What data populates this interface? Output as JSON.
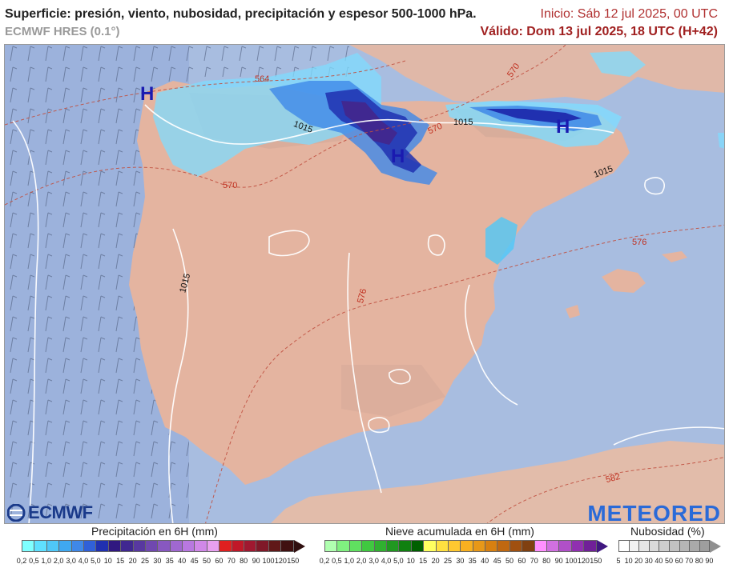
{
  "header": {
    "title": "Superficie: presión, viento, nubosidad, precipitación y espesor 500-1000 hPa.",
    "model": "ECMWF HRES (0.1°)",
    "init": "Inicio: Sáb 12 jul 2025, 00 UTC",
    "valid": "Válido: Dom 13 jul 2025, 18 UTC (H+42)"
  },
  "map": {
    "pressure_centers": [
      "H",
      "H",
      "H"
    ],
    "isobar_labels": [
      "1015",
      "1015",
      "1015",
      "1015"
    ],
    "thickness_labels": [
      "564",
      "570",
      "570",
      "570",
      "576",
      "576",
      "582"
    ],
    "logos": {
      "left": "ECMWF",
      "right": "METEORED"
    }
  },
  "legends": {
    "precip": {
      "title": "Precipitación en 6H (mm)",
      "labels": [
        "0,2",
        "0,5",
        "1,0",
        "2,0",
        "3,0",
        "4,0",
        "5,0",
        "10",
        "15",
        "20",
        "25",
        "30",
        "35",
        "40",
        "45",
        "50",
        "60",
        "70",
        "80",
        "90",
        "100",
        "120",
        "150"
      ],
      "colors": [
        "#7fffff",
        "#5fe0ff",
        "#4fc8f8",
        "#3fa8f0",
        "#3f88e8",
        "#3060d8",
        "#2030b0",
        "#301880",
        "#402890",
        "#5838a0",
        "#7048b0",
        "#8858c0",
        "#a068d0",
        "#b878e0",
        "#d088e8",
        "#e8a0f0",
        "#e02020",
        "#c01828",
        "#a01830",
        "#801828",
        "#601818",
        "#401010"
      ],
      "arrow_color": "#301010"
    },
    "snow": {
      "title": "Nieve acumulada en 6H (mm)",
      "labels": [
        "0,2",
        "0,5",
        "1,0",
        "2,0",
        "3,0",
        "4,0",
        "5,0",
        "10",
        "15",
        "20",
        "25",
        "30",
        "35",
        "40",
        "45",
        "50",
        "60",
        "70",
        "80",
        "90",
        "100",
        "120",
        "150"
      ],
      "colors": [
        "#b0ffb0",
        "#80f080",
        "#60e060",
        "#40c840",
        "#30b030",
        "#209820",
        "#108010",
        "#006000",
        "#ffff60",
        "#ffe040",
        "#ffc830",
        "#f8b020",
        "#e89818",
        "#d88010",
        "#c06810",
        "#a05010",
        "#804010",
        "#ff90ff",
        "#d070e0",
        "#b050c8",
        "#9030b0",
        "#702098"
      ],
      "arrow_color": "#401880"
    },
    "cloud": {
      "title": "Nubosidad (%)",
      "labels": [
        "5",
        "10",
        "20",
        "30",
        "40",
        "50",
        "60",
        "70",
        "80",
        "90"
      ],
      "colors": [
        "#ffffff",
        "#f2f2f2",
        "#e6e6e6",
        "#dadada",
        "#cecece",
        "#c2c2c2",
        "#b6b6b6",
        "#aaaaaa",
        "#9e9e9e"
      ],
      "arrow_color": "#909090"
    }
  }
}
